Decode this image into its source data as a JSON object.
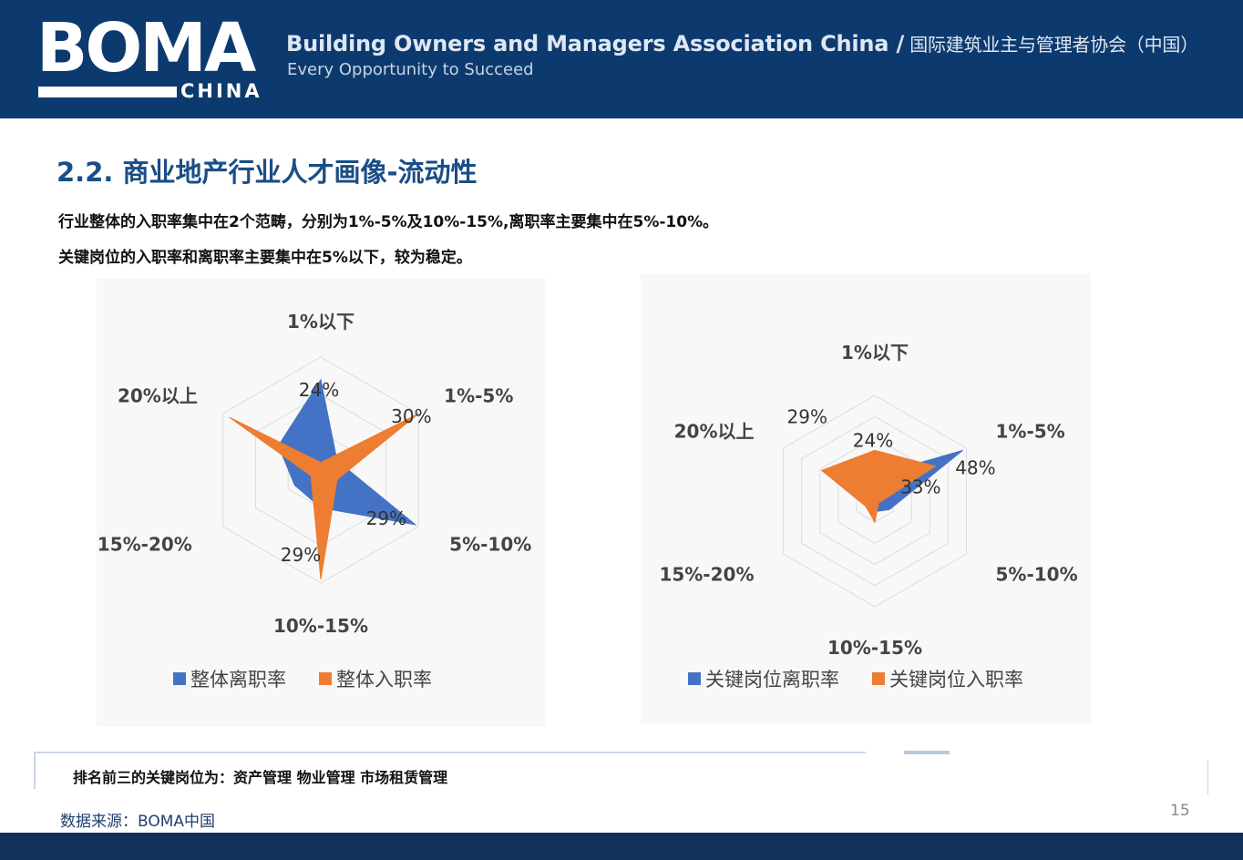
{
  "header": {
    "logo_main": "BOMA",
    "logo_sub": "CHINA",
    "org_name_en": "Building Owners and Managers Association China /",
    "org_name_cn": " 国际建筑业主与管理者协会（中国）",
    "tagline": "Every Opportunity to Succeed"
  },
  "title": "2.2. 商业地产行业人才画像-流动性",
  "summary": {
    "line1": "行业整体的入职率集中在2个范畴，分别为1%-5%及10%-15%,离职率主要集中在5%-10%。",
    "line2": "关键岗位的入职率和离职率主要集中在5%以下，较为稳定。"
  },
  "chart_data": [
    {
      "type": "radar",
      "categories": [
        "1%以下",
        "1%-5%",
        "5%-10%",
        "10%-15%",
        "15%-20%",
        "20%以上"
      ],
      "series": [
        {
          "name": "整体离职率",
          "values": [
            24,
            5,
            29,
            10,
            8,
            13
          ],
          "color": "#4472c4"
        },
        {
          "name": "整体入职率",
          "values": [
            2,
            30,
            5,
            29,
            3,
            28
          ],
          "color": "#ed7d31"
        }
      ],
      "data_labels": [
        {
          "text": "24%",
          "series": 0,
          "index": 0
        },
        {
          "text": "30%",
          "series": 1,
          "index": 1
        },
        {
          "text": "29%",
          "series": 0,
          "index": 2
        },
        {
          "text": "29%",
          "series": 1,
          "index": 3
        }
      ],
      "rmax": 30,
      "rings": 3,
      "legend": "bottom"
    },
    {
      "type": "radar",
      "categories": [
        "1%以下",
        "1%-5%",
        "5%-10%",
        "10%-15%",
        "15%-20%",
        "20%以上"
      ],
      "series": [
        {
          "name": "关键岗位离职率",
          "values": [
            12,
            48,
            8,
            5,
            4,
            10
          ],
          "color": "#4472c4"
        },
        {
          "name": "关键岗位入职率",
          "values": [
            24,
            33,
            2,
            10,
            5,
            29
          ],
          "color": "#ed7d31"
        }
      ],
      "data_labels": [
        {
          "text": "24%",
          "series": 1,
          "index": 0
        },
        {
          "text": "48%",
          "series": 0,
          "index": 1
        },
        {
          "text": "33%",
          "series": 1,
          "index": 1
        },
        {
          "text": "29%",
          "series": 1,
          "index": 5
        }
      ],
      "rmax": 50,
      "rings": 5,
      "legend": "bottom"
    }
  ],
  "note": "排名前三的关键岗位为：资产管理   物业管理   市场租赁管理",
  "source": "数据来源：BOMA中国",
  "page_number": "15"
}
